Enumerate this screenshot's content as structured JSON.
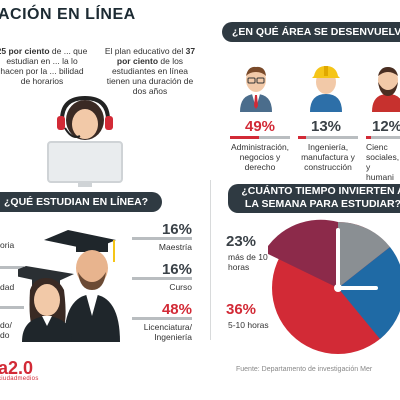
{
  "header": {
    "title": "ACIÓN EN LÍNEA"
  },
  "intro": {
    "left": {
      "pre": "",
      "highlight": "25 por ciento",
      "rest": " de ... que estudian en ... la lo hacen por la ... bilidad de horarios"
    },
    "right": {
      "pre": "El plan educativo del ",
      "highlight": "37 por ciento",
      "rest": " de los estudiantes en línea tienen una duración de dos años"
    }
  },
  "areas": {
    "title": "¿EN QUÉ ÁREA SE DESENVUELVEN",
    "items": [
      {
        "pct": "49%",
        "label": "Administración, negocios y derecho",
        "fraction": 0.49,
        "highlight": true,
        "icon": "businessman-icon"
      },
      {
        "pct": "13%",
        "label": "Ingeniería, manufactura y construcción",
        "fraction": 0.13,
        "highlight": false,
        "icon": "engineer-icon"
      },
      {
        "pct": "12%",
        "label": "Cienc sociales, y humani",
        "fraction": 0.12,
        "highlight": false,
        "icon": "bearded-man-icon"
      }
    ]
  },
  "study": {
    "title": "¿QUÉ ESTUDIAN EN LÍNEA?",
    "left_labels": [
      "oria",
      "dad",
      "do/ do"
    ],
    "items": [
      {
        "pct": "16%",
        "label": "Maestría",
        "highlight": false
      },
      {
        "pct": "16%",
        "label": "Curso",
        "highlight": false
      },
      {
        "pct": "48%",
        "label": "Licenciatura/ Ingeniería",
        "highlight": true
      }
    ]
  },
  "time": {
    "title": "¿CUÁNTO TIEMPO INVIERTEN A LA SEMANA PARA ESTUDIAR?",
    "items": [
      {
        "pct": "23%",
        "label": "más de 10 horas",
        "highlight": false
      },
      {
        "pct": "36%",
        "label": "5-10 horas",
        "highlight": true
      }
    ]
  },
  "footer": {
    "source": "Fuente: Departamento de investigación Mer",
    "logo": "a2.0",
    "logo_sub": "ciudadmedios"
  },
  "colors": {
    "red": "#d22a36",
    "dark": "#2f3a42",
    "gray": "#b9bdc0",
    "blue": "#1f6aa5",
    "purple": "#8c2a4a",
    "pie_gray": "#8a8f93"
  }
}
